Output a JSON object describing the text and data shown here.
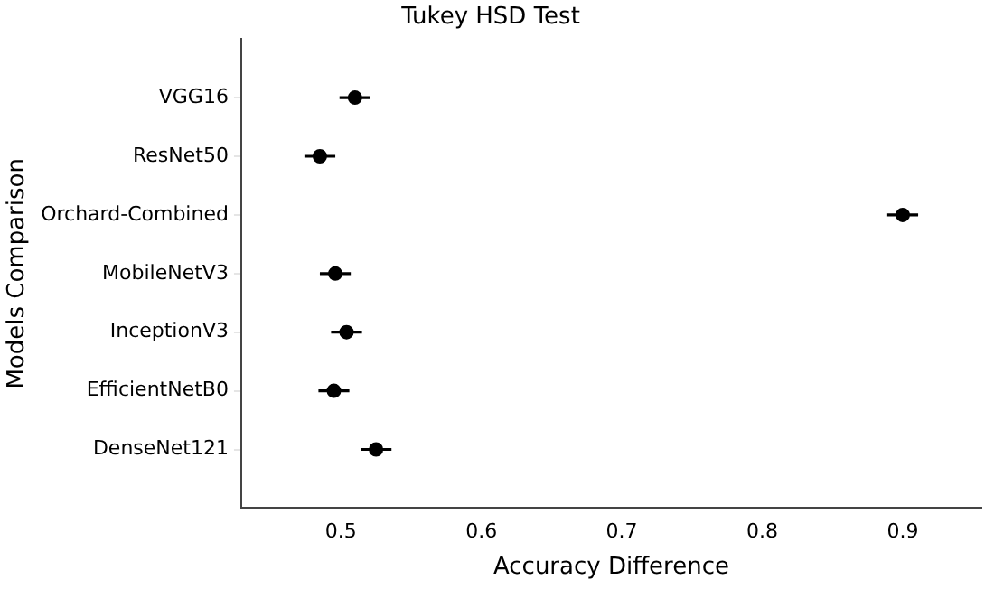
{
  "chart_data": {
    "type": "scatter",
    "title": "Tukey HSD Test",
    "xlabel": "Accuracy Difference",
    "ylabel": "Models Comparison",
    "orientation": "horizontal",
    "categories": [
      "VGG16",
      "ResNet50",
      "Orchard-Combined",
      "MobileNetV3",
      "InceptionV3",
      "EfficientNetB0",
      "DenseNet121"
    ],
    "values": [
      0.51,
      0.485,
      0.9,
      0.496,
      0.504,
      0.495,
      0.525
    ],
    "errors": [
      0.011,
      0.011,
      0.011,
      0.011,
      0.011,
      0.011,
      0.011
    ],
    "color": "#000000",
    "marker": "circle",
    "xlim": [
      0.429,
      0.956
    ],
    "xticks": [
      0.5,
      0.6,
      0.7,
      0.8,
      0.9
    ],
    "grid": false,
    "legend": false
  }
}
